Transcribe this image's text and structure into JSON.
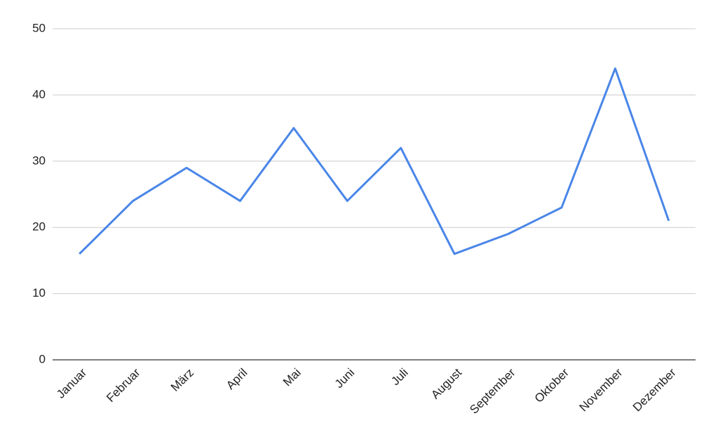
{
  "chart_data": {
    "type": "line",
    "categories": [
      "Januar",
      "Februar",
      "März",
      "April",
      "Mai",
      "Juni",
      "Juli",
      "August",
      "September",
      "Oktober",
      "November",
      "Dezember"
    ],
    "series": [
      {
        "color": "#4a86e8",
        "values": [
          16,
          24,
          29,
          24,
          35,
          24,
          32,
          16,
          19,
          23,
          44,
          21
        ]
      }
    ],
    "ylim": [
      0,
      50
    ],
    "yticks": [
      0,
      10,
      20,
      30,
      40,
      50
    ],
    "grid": true
  }
}
